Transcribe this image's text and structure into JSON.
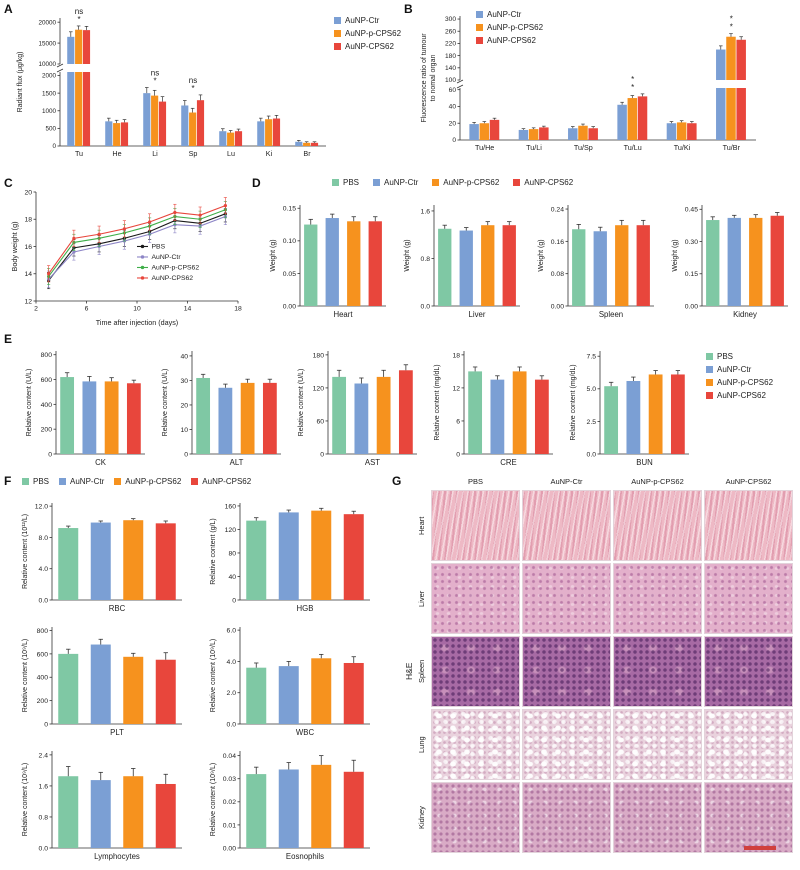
{
  "series": {
    "order": [
      "PBS",
      "AuNP-Ctr",
      "AuNP-p-CPS62",
      "AuNP-CPS62"
    ],
    "colors": {
      "PBS": "#7FC8A4",
      "AuNP-Ctr": "#7B9FD4",
      "AuNP-p-CPS62": "#F6921E",
      "AuNP-CPS62": "#E8463C"
    }
  },
  "line_colors": {
    "PBS": "#1a1a1a",
    "AuNP-Ctr": "#8D85C6",
    "AuNP-p-CPS62": "#3FAE49",
    "AuNP-CPS62": "#E8463C"
  },
  "legends": {
    "A": {
      "items": [
        "AuNP-Ctr",
        "AuNP-p-CPS62",
        "AuNP-CPS62"
      ],
      "layout": "col"
    },
    "B": {
      "items": [
        "AuNP-Ctr",
        "AuNP-p-CPS62",
        "AuNP-CPS62"
      ],
      "layout": "col"
    },
    "D": {
      "items": [
        "PBS",
        "AuNP-Ctr",
        "AuNP-p-CPS62",
        "AuNP-CPS62"
      ],
      "layout": "row"
    },
    "E": {
      "items": [
        "PBS",
        "AuNP-Ctr",
        "AuNP-p-CPS62",
        "AuNP-CPS62"
      ],
      "layout": "col"
    },
    "F": {
      "items": [
        "PBS",
        "AuNP-Ctr",
        "AuNP-p-CPS62",
        "AuNP-CPS62"
      ],
      "layout": "row"
    }
  },
  "panels": {
    "A": {
      "label": "A"
    },
    "B": {
      "label": "B"
    },
    "C": {
      "label": "C"
    },
    "D": {
      "label": "D"
    },
    "E": {
      "label": "E"
    },
    "F": {
      "label": "F"
    },
    "G": {
      "label": "G",
      "col_headers": [
        "PBS",
        "AuNP-Ctr",
        "AuNP-p-CPS62",
        "AuNP-CPS62"
      ],
      "row_labels": [
        "Heart",
        "Liver",
        "Spleen",
        "Lung",
        "Kidney"
      ],
      "side_label": "H&E"
    }
  },
  "chart_data": [
    {
      "id": "A",
      "type": "grouped-bar-broken",
      "ylabel_lines": [
        "Radiant flux (μg/kg)"
      ],
      "categories": [
        "Tu",
        "He",
        "Li",
        "Sp",
        "Lu",
        "Ki",
        "Br"
      ],
      "series": [
        {
          "name": "AuNP-Ctr",
          "values": [
            16500,
            700,
            1500,
            1150,
            420,
            700,
            120
          ],
          "errors": [
            1200,
            90,
            160,
            140,
            70,
            90,
            40
          ]
        },
        {
          "name": "AuNP-p-CPS62",
          "values": [
            18200,
            650,
            1430,
            950,
            380,
            760,
            90
          ],
          "errors": [
            900,
            80,
            150,
            120,
            60,
            90,
            30
          ]
        },
        {
          "name": "AuNP-CPS62",
          "values": [
            18100,
            670,
            1260,
            1300,
            420,
            780,
            90
          ],
          "errors": [
            900,
            80,
            140,
            150,
            60,
            90,
            30
          ]
        }
      ],
      "axis_break": {
        "lower": {
          "min": 0,
          "max": 2100,
          "ticks": [
            0,
            500,
            1000,
            1500,
            2000
          ]
        },
        "upper": {
          "min": 10000,
          "max": 21000,
          "ticks": [
            10000,
            15000,
            20000
          ]
        }
      },
      "annotations": [
        {
          "category": "Tu",
          "labels": [
            "ns",
            "*"
          ]
        },
        {
          "category": "Li",
          "labels": [
            "ns",
            "*"
          ]
        },
        {
          "category": "Sp",
          "labels": [
            "ns",
            "*"
          ]
        }
      ]
    },
    {
      "id": "B",
      "type": "grouped-bar-broken",
      "ylabel_lines": [
        "Fluorescence ratio of tumour",
        "to nomal organ"
      ],
      "categories": [
        "Tu/He",
        "Tu/Li",
        "Tu/Sp",
        "Tu/Lu",
        "Tu/Ki",
        "Tu/Br"
      ],
      "series": [
        {
          "name": "AuNP-Ctr",
          "values": [
            19,
            12,
            14,
            42,
            20,
            200
          ],
          "errors": [
            2,
            1.5,
            2,
            3,
            2,
            12
          ]
        },
        {
          "name": "AuNP-p-CPS62",
          "values": [
            20,
            13,
            17,
            50,
            21,
            242
          ],
          "errors": [
            2,
            1.5,
            2,
            3,
            2,
            10
          ]
        },
        {
          "name": "AuNP-CPS62",
          "values": [
            24,
            15,
            14,
            52,
            20,
            232
          ],
          "errors": [
            2,
            1.5,
            2,
            3,
            2,
            10
          ]
        }
      ],
      "axis_break": {
        "lower": {
          "min": 0,
          "max": 62,
          "ticks": [
            0,
            20,
            40,
            60
          ]
        },
        "upper": {
          "min": 100,
          "max": 310,
          "ticks": [
            100,
            140,
            180,
            220,
            260,
            300
          ]
        }
      },
      "annotations": [
        {
          "category": "Tu/Lu",
          "labels": [
            "*",
            "*"
          ]
        },
        {
          "category": "Tu/Br",
          "labels": [
            "*",
            "*"
          ]
        }
      ]
    },
    {
      "id": "C",
      "type": "line",
      "xlabel": "Time after injection (days)",
      "ylabel": "Body weight (g)",
      "x": [
        3,
        5,
        7,
        9,
        11,
        13,
        15,
        17
      ],
      "xlim": [
        2,
        18
      ],
      "xticks": [
        2,
        6,
        10,
        14,
        18
      ],
      "ylim": [
        12,
        20
      ],
      "yticks": [
        12,
        14,
        16,
        18,
        20
      ],
      "error": 0.6,
      "series": [
        {
          "name": "PBS",
          "values": [
            13.5,
            15.9,
            16.2,
            16.6,
            17.1,
            17.9,
            17.7,
            18.4
          ]
        },
        {
          "name": "AuNP-Ctr",
          "values": [
            13.6,
            15.6,
            16.0,
            16.4,
            16.9,
            17.6,
            17.5,
            18.2
          ]
        },
        {
          "name": "AuNP-p-CPS62",
          "values": [
            13.8,
            16.3,
            16.6,
            17.0,
            17.5,
            18.2,
            18.0,
            18.7
          ]
        },
        {
          "name": "AuNP-CPS62",
          "values": [
            14.0,
            16.6,
            16.9,
            17.3,
            17.8,
            18.5,
            18.3,
            19.0
          ]
        }
      ]
    },
    {
      "id": "D-Heart",
      "type": "bar",
      "xlabel": "Heart",
      "ylabel": "Weight (g)",
      "ylim": [
        0,
        0.155
      ],
      "yticks": [
        0,
        0.05,
        0.1,
        0.15
      ],
      "ytickfmt": 2,
      "values": [
        0.125,
        0.135,
        0.13,
        0.13
      ],
      "errors": [
        0.008,
        0.006,
        0.007,
        0.007
      ]
    },
    {
      "id": "D-Liver",
      "type": "bar",
      "xlabel": "Liver",
      "ylabel": "Weight (g)",
      "ylim": [
        0,
        1.7
      ],
      "yticks": [
        0,
        0.8,
        1.6
      ],
      "ytickfmt": 1,
      "values": [
        1.3,
        1.27,
        1.36,
        1.36
      ],
      "errors": [
        0.06,
        0.05,
        0.06,
        0.06
      ]
    },
    {
      "id": "D-Spleen",
      "type": "bar",
      "xlabel": "Spleen",
      "ylabel": "Weight (g)",
      "ylim": [
        0,
        0.25
      ],
      "yticks": [
        0,
        0.08,
        0.16,
        0.24
      ],
      "ytickfmt": 2,
      "values": [
        0.19,
        0.185,
        0.2,
        0.2
      ],
      "errors": [
        0.012,
        0.01,
        0.012,
        0.012
      ]
    },
    {
      "id": "D-Kidney",
      "type": "bar",
      "xlabel": "Kidney",
      "ylabel": "Weight (g)",
      "ylim": [
        0,
        0.47
      ],
      "yticks": [
        0,
        0.15,
        0.3,
        0.45
      ],
      "ytickfmt": 2,
      "values": [
        0.4,
        0.41,
        0.41,
        0.42
      ],
      "errors": [
        0.015,
        0.012,
        0.015,
        0.015
      ]
    },
    {
      "id": "E-CK",
      "type": "bar",
      "xlabel": "CK",
      "ylabel": "Relative content (U/L)",
      "ylim": [
        0,
        830
      ],
      "yticks": [
        0,
        200,
        400,
        600,
        800
      ],
      "ytickfmt": 0,
      "values": [
        620,
        585,
        585,
        570
      ],
      "errors": [
        35,
        40,
        30,
        25
      ]
    },
    {
      "id": "E-ALT",
      "type": "bar",
      "xlabel": "ALT",
      "ylabel": "Relative content (U/L)",
      "ylim": [
        0,
        42
      ],
      "yticks": [
        0,
        10,
        20,
        30,
        40
      ],
      "ytickfmt": 0,
      "values": [
        31,
        27,
        29,
        29
      ],
      "errors": [
        1.5,
        1.5,
        1.5,
        1.5
      ]
    },
    {
      "id": "E-AST",
      "type": "bar",
      "xlabel": "AST",
      "ylabel": "Relative content (U/L)",
      "ylim": [
        0,
        187
      ],
      "yticks": [
        0,
        60,
        120,
        180
      ],
      "ytickfmt": 0,
      "values": [
        140,
        128,
        140,
        152
      ],
      "errors": [
        12,
        10,
        12,
        10
      ]
    },
    {
      "id": "E-CRE",
      "type": "bar",
      "xlabel": "CRE",
      "ylabel": "Relative content (mg/dL)",
      "ylim": [
        0,
        18.7
      ],
      "yticks": [
        0,
        6,
        12,
        18
      ],
      "ytickfmt": 0,
      "values": [
        15,
        13.5,
        15,
        13.5
      ],
      "errors": [
        0.8,
        0.7,
        0.8,
        0.7
      ]
    },
    {
      "id": "E-BUN",
      "type": "bar",
      "xlabel": "BUN",
      "ylabel": "Relative content (mg/dL)",
      "ylim": [
        0,
        7.9
      ],
      "yticks": [
        0,
        2.5,
        5,
        7.5
      ],
      "ytickfmt": 1,
      "values": [
        5.2,
        5.6,
        6.1,
        6.1
      ],
      "errors": [
        0.3,
        0.3,
        0.3,
        0.3
      ]
    },
    {
      "id": "F-RBC",
      "type": "bar",
      "xlabel": "RBC",
      "ylabel": "Relative content (10¹²/L)",
      "ylim": [
        0,
        12.4
      ],
      "yticks": [
        0,
        4,
        8,
        12
      ],
      "ytickfmt": 1,
      "values": [
        9.2,
        9.9,
        10.2,
        9.8
      ],
      "errors": [
        0.25,
        0.2,
        0.2,
        0.3
      ]
    },
    {
      "id": "F-HGB",
      "type": "bar",
      "xlabel": "HGB",
      "ylabel": "Relative content (g/L)",
      "ylim": [
        0,
        165
      ],
      "yticks": [
        0,
        40,
        80,
        120,
        160
      ],
      "ytickfmt": 0,
      "values": [
        135,
        149,
        152,
        146
      ],
      "errors": [
        5,
        4,
        4,
        5
      ]
    },
    {
      "id": "F-PLT",
      "type": "bar",
      "xlabel": "PLT",
      "ylabel": "Relative content (10⁹/L)",
      "ylim": [
        0,
        830
      ],
      "yticks": [
        0,
        200,
        400,
        600,
        800
      ],
      "ytickfmt": 0,
      "values": [
        600,
        680,
        575,
        550
      ],
      "errors": [
        40,
        45,
        30,
        60
      ]
    },
    {
      "id": "F-WBC",
      "type": "bar",
      "xlabel": "WBC",
      "ylabel": "Relative content (10⁹/L)",
      "ylim": [
        0,
        6.2
      ],
      "yticks": [
        0,
        2,
        4,
        6
      ],
      "ytickfmt": 1,
      "values": [
        3.6,
        3.7,
        4.2,
        3.9
      ],
      "errors": [
        0.3,
        0.3,
        0.25,
        0.4
      ]
    },
    {
      "id": "F-Lymphocytes",
      "type": "bar",
      "xlabel": "Lymphocytes",
      "ylabel": "Relative content (10⁹/L)",
      "ylim": [
        0,
        2.5
      ],
      "yticks": [
        0,
        0.8,
        1.6,
        2.4
      ],
      "ytickfmt": 1,
      "values": [
        1.85,
        1.75,
        1.85,
        1.65
      ],
      "errors": [
        0.25,
        0.2,
        0.2,
        0.25
      ]
    },
    {
      "id": "F-Eosnophils",
      "type": "bar",
      "xlabel": "Eosnophils",
      "ylabel": "Relative content (10⁹/L)",
      "ylim": [
        0,
        0.042
      ],
      "yticks": [
        0,
        0.01,
        0.02,
        0.03,
        0.04
      ],
      "ytickfmt": 2,
      "values": [
        0.032,
        0.034,
        0.036,
        0.033
      ],
      "errors": [
        0.003,
        0.003,
        0.004,
        0.005
      ]
    }
  ]
}
